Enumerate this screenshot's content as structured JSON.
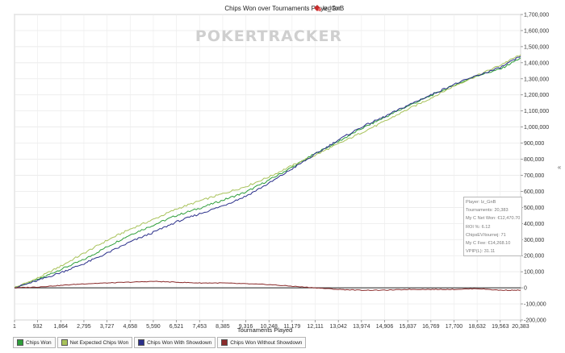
{
  "chart_data": {
    "type": "line",
    "title": "Chips Won over Tournaments Played for",
    "player": "lz_GnB",
    "watermark": "POKERTRACKER",
    "xlabel": "Tournaments Played",
    "ylabel": "",
    "xlim": [
      1,
      20383
    ],
    "ylim": [
      -200000,
      1700000
    ],
    "x_ticks": [
      "1",
      "932",
      "1,864",
      "2,795",
      "3,727",
      "4,658",
      "5,590",
      "6,521",
      "7,453",
      "8,385",
      "9,316",
      "10,248",
      "11,179",
      "12,111",
      "13,042",
      "13,974",
      "14,906",
      "15,837",
      "16,769",
      "17,700",
      "18,632",
      "19,563",
      "20,383"
    ],
    "y_ticks": [
      "-200,000",
      "-100,000",
      "0",
      "100,000",
      "200,000",
      "300,000",
      "400,000",
      "500,000",
      "600,000",
      "700,000",
      "800,000",
      "900,000",
      "1,000,000",
      "1,100,000",
      "1,200,000",
      "1,300,000",
      "1,400,000",
      "1,500,000",
      "1,600,000",
      "1,700,000"
    ],
    "grid": true,
    "legend_position": "bottom-left",
    "series": [
      {
        "name": "Chips Won",
        "color": "#2e9e3a",
        "x": [
          1,
          932,
          1864,
          2795,
          3727,
          4658,
          5590,
          6521,
          7453,
          8385,
          9316,
          10248,
          11179,
          12111,
          13042,
          13974,
          14906,
          15837,
          16769,
          17700,
          18632,
          19563,
          20383
        ],
        "y": [
          0,
          50000,
          115000,
          175000,
          255000,
          330000,
          390000,
          450000,
          495000,
          545000,
          595000,
          670000,
          750000,
          835000,
          910000,
          990000,
          1060000,
          1130000,
          1195000,
          1260000,
          1320000,
          1360000,
          1430000
        ]
      },
      {
        "name": "Net Expected Chips Won",
        "color": "#a8c25a",
        "x": [
          1,
          932,
          1864,
          2795,
          3727,
          4658,
          5590,
          6521,
          7453,
          8385,
          9316,
          10248,
          11179,
          12111,
          13042,
          13974,
          14906,
          15837,
          16769,
          17700,
          18632,
          19563,
          20383
        ],
        "y": [
          0,
          60000,
          135000,
          215000,
          295000,
          365000,
          425000,
          490000,
          540000,
          585000,
          630000,
          690000,
          760000,
          825000,
          895000,
          965000,
          1035000,
          1110000,
          1180000,
          1255000,
          1320000,
          1385000,
          1450000
        ]
      },
      {
        "name": "Chips Won With Showdown",
        "color": "#2a2f8a",
        "x": [
          1,
          932,
          1864,
          2795,
          3727,
          4658,
          5590,
          6521,
          7453,
          8385,
          9316,
          10248,
          11179,
          12111,
          13042,
          13974,
          14906,
          15837,
          16769,
          17700,
          18632,
          19563,
          20383
        ],
        "y": [
          0,
          45000,
          95000,
          150000,
          215000,
          285000,
          345000,
          410000,
          460000,
          510000,
          570000,
          650000,
          740000,
          830000,
          920000,
          1000000,
          1065000,
          1135000,
          1200000,
          1265000,
          1320000,
          1370000,
          1440000
        ]
      },
      {
        "name": "Chips Won Without Showdown",
        "color": "#8a2a2a",
        "x": [
          1,
          932,
          1864,
          2795,
          3727,
          4658,
          5590,
          6521,
          7453,
          8385,
          9316,
          10248,
          11179,
          12111,
          13042,
          13974,
          14906,
          15837,
          16769,
          17700,
          18632,
          19563,
          20383
        ],
        "y": [
          0,
          5000,
          15000,
          25000,
          30000,
          35000,
          40000,
          35000,
          30000,
          30000,
          25000,
          20000,
          10000,
          0,
          -10000,
          -15000,
          -15000,
          -10000,
          -10000,
          -10000,
          -5000,
          -15000,
          -15000
        ]
      }
    ]
  },
  "stats": {
    "player": "Player: lz_GnB",
    "tournaments": "Tournaments: 20,383",
    "net_won": "My C Net Won: €12,470.70",
    "roi": "ROI %: 6.12",
    "chipsev": "ChipsEV/tournej: 71",
    "fee": "My C Fee: €14,268.10",
    "vpip": "VPIP(L): 31.11"
  }
}
